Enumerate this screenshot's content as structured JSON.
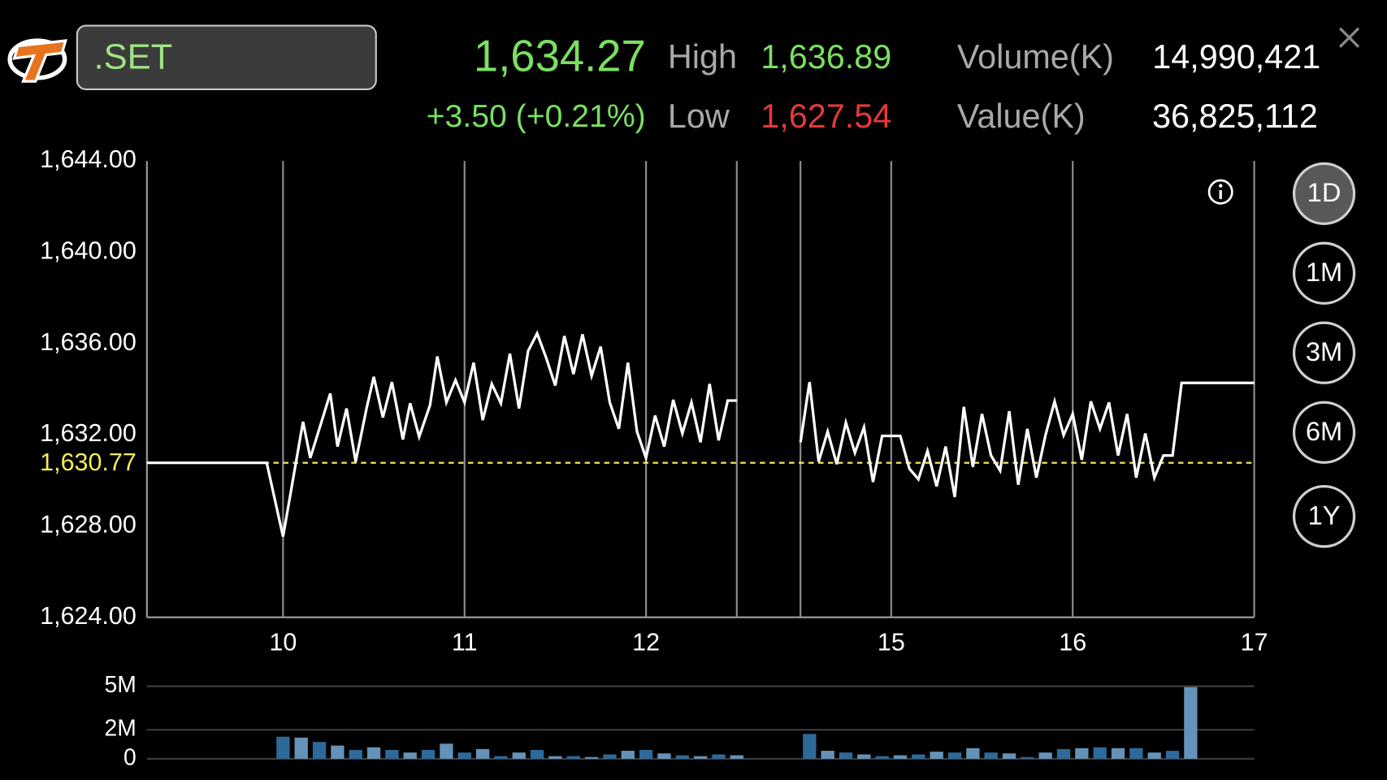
{
  "header": {
    "symbol": ".SET",
    "last": "1,634.27",
    "change": "+3.50 (+0.21%)",
    "high_label": "High",
    "high": "1,636.89",
    "low_label": "Low",
    "low": "1,627.54",
    "volume_label": "Volume(K)",
    "volume": "14,990,421",
    "value_label": "Value(K)",
    "value": "36,825,112"
  },
  "periods": [
    "1D",
    "1M",
    "3M",
    "6M",
    "1Y"
  ],
  "selected_period": 0,
  "chart_data": [
    {
      "type": "line",
      "color": "#ffffff",
      "xlim": [
        9.25,
        17
      ],
      "xbreak": [
        12.5,
        14.5
      ],
      "xticks": [
        10,
        11,
        12,
        15,
        16,
        17
      ],
      "ylim": [
        1624,
        1644
      ],
      "yticks": [
        {
          "value": 1624,
          "label": "1,624.00"
        },
        {
          "value": 1628,
          "label": "1,628.00"
        },
        {
          "value": 1632,
          "label": "1,632.00"
        },
        {
          "value": 1636,
          "label": "1,636.00"
        },
        {
          "value": 1640,
          "label": "1,640.00"
        },
        {
          "value": 1644,
          "label": "1,644.00"
        }
      ],
      "grid": true,
      "reference": {
        "value": 1630.77,
        "label": "1,630.77",
        "color": "#f2ec5a"
      },
      "x": [
        9.25,
        9.91,
        10,
        10.11,
        10.15,
        10.26,
        10.3,
        10.35,
        10.4,
        10.46,
        10.5,
        10.55,
        10.6,
        10.66,
        10.7,
        10.75,
        10.81,
        10.85,
        10.9,
        10.95,
        11,
        11.05,
        11.1,
        11.15,
        11.2,
        11.25,
        11.3,
        11.35,
        11.4,
        11.45,
        11.5,
        11.55,
        11.6,
        11.65,
        11.7,
        11.75,
        11.8,
        11.85,
        11.9,
        11.95,
        12,
        12.05,
        12.1,
        12.15,
        12.2,
        12.25,
        12.3,
        12.35,
        12.4,
        12.45,
        12.5,
        13.5,
        14.5,
        14.55,
        14.6,
        14.65,
        14.7,
        14.75,
        14.8,
        14.85,
        14.9,
        14.95,
        15.05,
        15.1,
        15.15,
        15.2,
        15.25,
        15.3,
        15.35,
        15.4,
        15.45,
        15.5,
        15.55,
        15.6,
        15.65,
        15.7,
        15.75,
        15.8,
        15.85,
        15.9,
        15.95,
        16,
        16.05,
        16.1,
        16.15,
        16.2,
        16.25,
        16.3,
        16.35,
        16.4,
        16.45,
        16.5,
        16.55,
        16.6,
        17
      ],
      "values": [
        1630.77,
        1630.77,
        1627.54,
        1632.57,
        1630.98,
        1633.81,
        1631.48,
        1633.15,
        1630.82,
        1633.15,
        1634.54,
        1632.76,
        1634.31,
        1631.79,
        1633.38,
        1631.91,
        1633.3,
        1635.43,
        1633.42,
        1634.39,
        1633.42,
        1635.16,
        1632.64,
        1634.23,
        1633.38,
        1635.55,
        1633.15,
        1635.67,
        1636.44,
        1635.36,
        1634.16,
        1636.33,
        1634.66,
        1636.4,
        1634.58,
        1635.86,
        1633.42,
        1632.26,
        1635.16,
        1632.14,
        1630.98,
        1632.84,
        1631.48,
        1633.53,
        1632.06,
        1633.42,
        1631.67,
        1634.23,
        1631.75,
        1633.5,
        1633.5,
        null,
        1631.67,
        1634.31,
        1630.82,
        1632.14,
        1630.71,
        1632.53,
        1631.21,
        1632.33,
        1629.93,
        1631.95,
        1631.95,
        1630.51,
        1630.05,
        1631.29,
        1629.74,
        1631.48,
        1629.27,
        1633.22,
        1630.59,
        1632.91,
        1631.09,
        1630.43,
        1633.03,
        1629.81,
        1632.26,
        1630.12,
        1631.98,
        1633.46,
        1631.98,
        1632.91,
        1630.9,
        1633.46,
        1632.26,
        1633.42,
        1631.09,
        1632.91,
        1630.12,
        1632.06,
        1630.12,
        1631.09,
        1631.09,
        1634.27,
        1634.27
      ]
    },
    {
      "type": "bar",
      "colors": [
        "#2d6a9a",
        "#6592b8"
      ],
      "xlim": [
        9.25,
        17
      ],
      "xbreak": [
        12.5,
        14.5
      ],
      "ylim": [
        0,
        5000000
      ],
      "yticks": [
        0,
        {
          "value": 2000000,
          "label": "2M"
        },
        {
          "value": 5000000,
          "label": "5M"
        }
      ],
      "grid": true,
      "x": [
        10,
        10.1,
        10.2,
        10.3,
        10.4,
        10.5,
        10.6,
        10.7,
        10.8,
        10.9,
        11,
        11.1,
        11.2,
        11.3,
        11.4,
        11.5,
        11.6,
        11.7,
        11.8,
        11.9,
        12,
        12.1,
        12.2,
        12.3,
        12.4,
        12.5,
        14.55,
        14.65,
        14.75,
        14.85,
        14.95,
        15.05,
        15.15,
        15.25,
        15.35,
        15.45,
        15.55,
        15.65,
        15.75,
        15.85,
        15.95,
        16.05,
        16.15,
        16.25,
        16.35,
        16.45,
        16.55,
        16.65
      ],
      "values": [
        1520000,
        1460000,
        1160000,
        910000,
        610000,
        790000,
        610000,
        430000,
        610000,
        1040000,
        430000,
        670000,
        180000,
        430000,
        610000,
        180000,
        180000,
        120000,
        300000,
        550000,
        610000,
        370000,
        240000,
        180000,
        300000,
        240000,
        1710000,
        550000,
        430000,
        300000,
        180000,
        240000,
        300000,
        490000,
        430000,
        730000,
        430000,
        370000,
        120000,
        430000,
        670000,
        730000,
        790000,
        730000,
        730000,
        430000,
        550000,
        4940000
      ]
    }
  ]
}
